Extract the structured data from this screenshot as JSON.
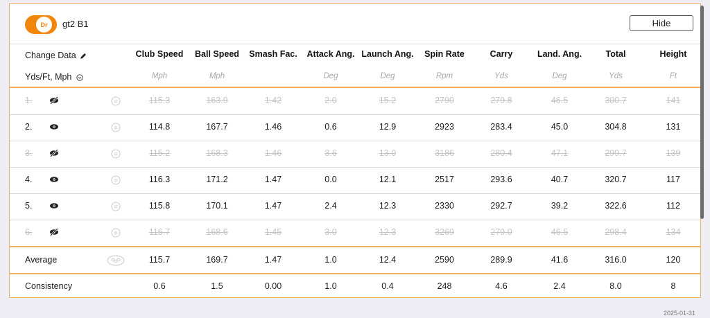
{
  "session": {
    "toggle_label": "Dr",
    "name": "gt2 B1"
  },
  "hide_button": "Hide",
  "header": {
    "change_data": "Change Data",
    "units_selector": "Yds/Ft, Mph"
  },
  "columns": [
    {
      "label": "Club Speed",
      "unit": "Mph"
    },
    {
      "label": "Ball Speed",
      "unit": "Mph"
    },
    {
      "label": "Smash Fac.",
      "unit": ""
    },
    {
      "label": "Attack Ang.",
      "unit": "Deg"
    },
    {
      "label": "Launch Ang.",
      "unit": "Deg"
    },
    {
      "label": "Spin Rate",
      "unit": "Rpm"
    },
    {
      "label": "Carry",
      "unit": "Yds"
    },
    {
      "label": "Land. Ang.",
      "unit": "Deg"
    },
    {
      "label": "Total",
      "unit": "Yds"
    },
    {
      "label": "Height",
      "unit": "Ft"
    }
  ],
  "shots": [
    {
      "index": "1.",
      "hidden": true,
      "values": [
        "115.3",
        "163.9",
        "1.42",
        "2.0",
        "15.2",
        "2790",
        "279.8",
        "46.5",
        "300.7",
        "141"
      ]
    },
    {
      "index": "2.",
      "hidden": false,
      "values": [
        "114.8",
        "167.7",
        "1.46",
        "0.6",
        "12.9",
        "2923",
        "283.4",
        "45.0",
        "304.8",
        "131"
      ]
    },
    {
      "index": "3.",
      "hidden": true,
      "values": [
        "115.2",
        "168.3",
        "1.46",
        "3.6",
        "13.0",
        "3186",
        "280.4",
        "47.1",
        "299.7",
        "139"
      ]
    },
    {
      "index": "4.",
      "hidden": false,
      "values": [
        "116.3",
        "171.2",
        "1.47",
        "0.0",
        "12.1",
        "2517",
        "293.6",
        "40.7",
        "320.7",
        "117"
      ]
    },
    {
      "index": "5.",
      "hidden": false,
      "values": [
        "115.8",
        "170.1",
        "1.47",
        "2.4",
        "12.3",
        "2330",
        "292.7",
        "39.2",
        "322.6",
        "112"
      ]
    },
    {
      "index": "6.",
      "hidden": true,
      "values": [
        "116.7",
        "168.6",
        "1.45",
        "3.0",
        "12.3",
        "3269",
        "279.0",
        "46.5",
        "298.4",
        "134"
      ]
    }
  ],
  "average": {
    "label": "Average",
    "values": [
      "115.7",
      "169.7",
      "1.47",
      "1.0",
      "12.4",
      "2590",
      "289.9",
      "41.6",
      "316.0",
      "120"
    ]
  },
  "consistency": {
    "label": "Consistency",
    "values": [
      "0.6",
      "1.5",
      "0.00",
      "1.0",
      "0.4",
      "248",
      "4.6",
      "2.4",
      "8.0",
      "8"
    ]
  },
  "date": "2025-01-31",
  "colors": {
    "accent": "#f1860c",
    "border": "#f0b15d",
    "muted": "#c4c4c4"
  },
  "icons": {
    "visible": "eye-icon",
    "hidden": "eye-slash-icon",
    "shot": "face-icon",
    "average": "group-icon"
  }
}
